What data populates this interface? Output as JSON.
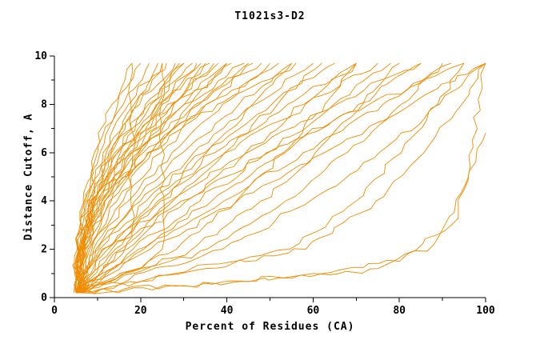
{
  "chart_data": {
    "type": "line",
    "title": "T1021s3-D2",
    "xlabel": "Percent of Residues (CA)",
    "ylabel": "Distance Cutoff, A",
    "xlim": [
      0,
      100
    ],
    "ylim": [
      0,
      10
    ],
    "x_ticks": {
      "major": [
        0,
        20,
        40,
        60,
        80,
        100
      ],
      "minor_step": 10
    },
    "y_ticks": {
      "major": [
        0,
        2,
        4,
        6,
        8,
        10
      ],
      "minor_step": 1
    },
    "line_color": "#f08c00",
    "axis_color": "#000000",
    "background": "#ffffff",
    "legend": "none",
    "grid": false,
    "default_y": [
      0.2,
      2,
      4,
      6,
      8,
      9.7
    ],
    "series": [
      {
        "x": [
          5,
          5.3,
          6.7,
          9.3,
          13.4,
          18
        ]
      },
      {
        "x": [
          5.5,
          5.8,
          6.9,
          10,
          14.7,
          20
        ]
      },
      {
        "x": [
          4.5,
          5.4,
          7.2,
          10.6,
          16,
          22
        ]
      },
      {
        "x": [
          6,
          6.4,
          7.5,
          11.3,
          17.2,
          24
        ]
      },
      {
        "x": [
          5,
          5.5,
          7.7,
          12,
          18.5,
          26
        ]
      },
      {
        "x": [
          6.5,
          6.6,
          8,
          12.6,
          19.8,
          28
        ]
      },
      {
        "x": [
          5,
          5.6,
          8.2,
          13.3,
          21.1,
          30
        ]
      },
      {
        "x": [
          7,
          7.2,
          8.5,
          14,
          22.4,
          32
        ]
      },
      {
        "x": [
          5,
          5.7,
          8.7,
          14.6,
          23.7,
          34
        ]
      },
      {
        "x": [
          6,
          6.3,
          9,
          15.3,
          25,
          36
        ]
      },
      {
        "x": [
          5,
          5.8,
          9.3,
          16,
          26.3,
          38
        ]
      },
      {
        "x": [
          5.5,
          6,
          9.5,
          16.6,
          27.5,
          40
        ]
      },
      {
        "x": [
          5,
          5.9,
          10,
          17.9,
          30.1,
          44
        ]
      },
      {
        "x": [
          6,
          6.5,
          10.5,
          19.3,
          32.7,
          48
        ]
      },
      {
        "x": [
          5,
          6.1,
          11.1,
          20.6,
          35.3,
          52
        ]
      },
      {
        "x": [
          6.5,
          7,
          11.6,
          21.9,
          37.8,
          56
        ]
      },
      {
        "x": [
          5,
          5.9,
          8.7,
          13.1,
          19,
          25
        ]
      },
      {
        "x": [
          5.5,
          6.1,
          9.5,
          14.7,
          21.8,
          29
        ]
      },
      {
        "x": [
          5,
          6.3,
          10.2,
          16.4,
          24.5,
          33
        ]
      },
      {
        "x": [
          6,
          6.9,
          11,
          18,
          27.3,
          37
        ]
      },
      {
        "x": [
          5,
          6.7,
          11.7,
          19.6,
          30.1,
          41
        ]
      },
      {
        "x": [
          5.5,
          6.9,
          12.7,
          21.6,
          33.6,
          46
        ]
      },
      {
        "x": [
          5,
          7.3,
          11.8,
          17.4,
          23.9,
          30
        ]
      },
      {
        "x": [
          5.5,
          7.8,
          13.2,
          19.9,
          27.7,
          35
        ]
      },
      {
        "x": [
          5,
          8.2,
          14.5,
          22.4,
          31.5,
          40
        ]
      },
      {
        "x": [
          6,
          8.7,
          15.9,
          24.8,
          35.2,
          45
        ]
      },
      {
        "x": [
          5,
          9.1,
          17.2,
          27.3,
          39,
          50
        ]
      },
      {
        "x": [
          5.5,
          9.6,
          18.6,
          29.8,
          42.8,
          55
        ]
      },
      {
        "x": [
          5,
          10.1,
          20,
          32.3,
          46.6,
          60
        ]
      },
      {
        "x": [
          6,
          10.5,
          21.3,
          34.8,
          50.4,
          65
        ]
      },
      {
        "x": [
          5,
          11,
          22.7,
          37.2,
          54.1,
          70
        ]
      },
      {
        "x": [
          5.5,
          11.4,
          24,
          39.7,
          57.9,
          75
        ]
      },
      {
        "x": [
          5,
          12.4,
          26.8,
          44.7,
          65.5,
          85
        ]
      },
      {
        "x": [
          6,
          13.3,
          29.5,
          49.6,
          73,
          95
        ]
      },
      {
        "x": [
          5,
          14.1,
          24.7,
          35.3,
          46,
          55
        ]
      },
      {
        "x": [
          5.5,
          15.3,
          27.5,
          39.5,
          51.7,
          62
        ]
      },
      {
        "x": [
          5,
          16.8,
          30.6,
          44.4,
          58.2,
          70
        ]
      },
      {
        "x": [
          6,
          18.2,
          33.8,
          49.2,
          64.8,
          78
        ]
      },
      {
        "x": [
          5,
          19.5,
          36.5,
          53.5,
          70.5,
          85
        ]
      },
      {
        "x": [
          5.5,
          20.7,
          39.3,
          57.7,
          76.2,
          92
        ]
      },
      {
        "x": [
          5,
          22.2,
          42.4,
          62.6,
          82.8,
          100
        ]
      },
      {
        "x": [
          5,
          28.3,
          42.2,
          53.1,
          62.7,
          70
        ]
      },
      {
        "x": [
          5.5,
          31.9,
          47.9,
          60.5,
          71.5,
          80
        ]
      },
      {
        "x": [
          5,
          35.4,
          53.6,
          67.9,
          80.4,
          90
        ]
      },
      {
        "x": [
          6,
          39,
          59.3,
          75.3,
          89.3,
          100
        ]
      },
      {
        "x": [
          5,
          54.5,
          70,
          80.5,
          88.9,
          95
        ]
      },
      {
        "x": [
          6,
          58.3,
          74.6,
          85.7,
          94.5,
          100
        ]
      },
      {
        "x": [
          5,
          30,
          55,
          75,
          88,
          96,
          100
        ],
        "y": [
          0.2,
          0.5,
          0.8,
          1.2,
          2.2,
          5,
          9.7
        ]
      },
      {
        "x": [
          5,
          35,
          60,
          80,
          92,
          100
        ],
        "y": [
          0.2,
          0.6,
          1,
          1.5,
          3,
          6.8
        ]
      },
      {
        "x": [
          5,
          14,
          18,
          18
        ],
        "y": [
          0.2,
          1.5,
          2.5,
          9.7
        ]
      },
      {
        "x": [
          5,
          20,
          25,
          25
        ],
        "y": [
          0.2,
          1.2,
          2,
          9.7
        ]
      }
    ]
  }
}
